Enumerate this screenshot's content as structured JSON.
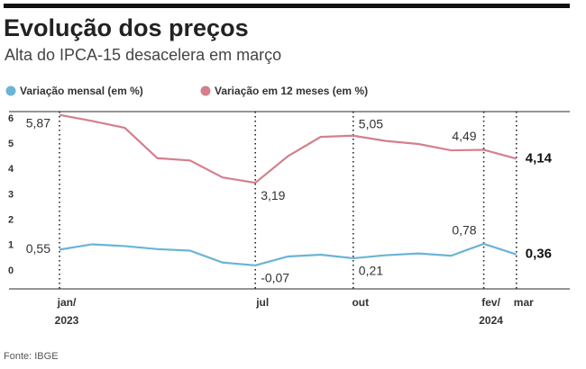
{
  "chart_data": {
    "type": "line",
    "title": "Evolução dos preços",
    "subtitle": "Alta do IPCA-15 desacelera em março",
    "source": "Fonte: IBGE",
    "categories": [
      "jan/",
      null,
      null,
      null,
      null,
      null,
      "jul",
      null,
      null,
      "out",
      null,
      null,
      null,
      "fev/",
      "mar"
    ],
    "category_years": [
      "2023",
      null,
      null,
      null,
      null,
      null,
      null,
      null,
      null,
      null,
      null,
      null,
      null,
      "2024",
      null
    ],
    "series": [
      {
        "name": "Variação mensal (em %)",
        "color": "#6ab4d6",
        "values": [
          0.55,
          0.76,
          0.69,
          0.57,
          0.51,
          0.04,
          -0.07,
          0.28,
          0.35,
          0.21,
          0.33,
          0.4,
          0.31,
          0.78,
          0.36
        ],
        "value_labels": [
          "0,55",
          null,
          null,
          null,
          null,
          null,
          "-0,07",
          null,
          null,
          "0,21",
          null,
          null,
          null,
          "0,78",
          "0,36"
        ]
      },
      {
        "name": "Variação em 12 meses (em %)",
        "color": "#d4808c",
        "values": [
          5.87,
          5.63,
          5.36,
          4.16,
          4.07,
          3.4,
          3.19,
          4.24,
          5.0,
          5.05,
          4.84,
          4.72,
          4.47,
          4.49,
          4.14
        ],
        "value_labels": [
          "5,87",
          null,
          null,
          null,
          null,
          null,
          "3,19",
          null,
          null,
          "5,05",
          null,
          null,
          null,
          "4,49",
          "4,14"
        ]
      }
    ],
    "ylim": [
      -1,
      6
    ],
    "yticks": [
      0,
      1,
      2,
      3,
      4,
      5,
      6
    ]
  }
}
